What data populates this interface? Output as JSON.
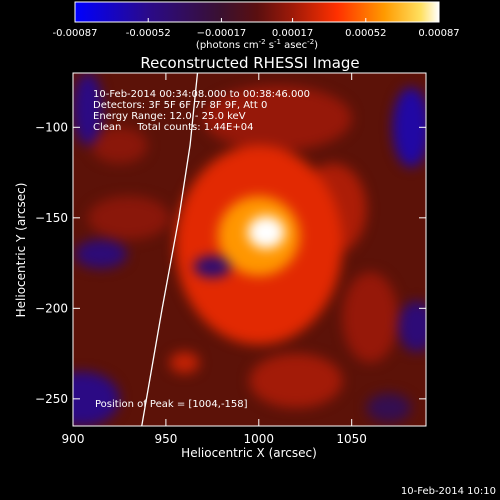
{
  "chart_data": {
    "type": "heatmap",
    "title": "Reconstructed RHESSI Image",
    "xlabel": "Heliocentric X (arcsec)",
    "ylabel": "Heliocentric Y (arcsec)",
    "xlim": [
      900,
      1090
    ],
    "ylim": [
      -265,
      -70
    ],
    "xticks": [
      900,
      950,
      1000,
      1050
    ],
    "yticks": [
      -100,
      -150,
      -200,
      -250
    ],
    "xtick_labels": [
      "900",
      "950",
      "1000",
      "1050"
    ],
    "ytick_labels": [
      "−100",
      "−150",
      "−200",
      "−250"
    ],
    "colorbar": {
      "range": [
        -0.00087,
        0.00087
      ],
      "tick_values": [
        -0.00087,
        -0.00052,
        -0.00017,
        0.00017,
        0.00052,
        0.00087
      ],
      "tick_labels": [
        "-0.00087",
        "-0.00052",
        "−0.00017",
        "0.00017",
        "0.00052",
        "0.00087"
      ],
      "unit_prefix": "(photons cm",
      "unit_sup1": "-2",
      "unit_mid1": " s",
      "unit_sup2": "-1",
      "unit_mid2": " asec",
      "unit_sup3": "-2",
      "unit_suffix": ")"
    },
    "info_lines": [
      "10-Feb-2014 00:34:08.000 to 00:38:46.000",
      "Detectors: 3F 5F 6F 7F 8F 9F, Att 0",
      "Energy Range: 12.0 - 25.0 keV",
      "Clean     Total counts: 1.44E+04"
    ],
    "peak_label": "Position of Peak = [1004,-158]",
    "peak": [
      1004,
      -158
    ],
    "limb_curve": [
      [
        967,
        -70
      ],
      [
        963,
        -110
      ],
      [
        957,
        -150
      ],
      [
        948,
        -200
      ],
      [
        937,
        -265
      ]
    ],
    "blobs": [
      {
        "x": 1004,
        "y": -158,
        "rx": 10,
        "ry": 9,
        "v": 0.00087
      },
      {
        "x": 1000,
        "y": -160,
        "rx": 22,
        "ry": 22,
        "v": 0.0006
      },
      {
        "x": 1000,
        "y": -165,
        "rx": 45,
        "ry": 55,
        "v": 0.00032
      },
      {
        "x": 995,
        "y": -195,
        "rx": 12,
        "ry": 14,
        "v": 0.0003
      },
      {
        "x": 960,
        "y": -230,
        "rx": 8,
        "ry": 6,
        "v": 0.00025
      },
      {
        "x": 1020,
        "y": -240,
        "rx": 25,
        "ry": 15,
        "v": 0.00018
      },
      {
        "x": 1040,
        "y": -145,
        "rx": 18,
        "ry": 25,
        "v": 0.0002
      },
      {
        "x": 1010,
        "y": -95,
        "rx": 40,
        "ry": 18,
        "v": 0.00015
      },
      {
        "x": 930,
        "y": -150,
        "rx": 22,
        "ry": 12,
        "v": 0.00012
      },
      {
        "x": 925,
        "y": -110,
        "rx": 15,
        "ry": 10,
        "v": 0.00012
      },
      {
        "x": 1060,
        "y": -205,
        "rx": 15,
        "ry": 25,
        "v": 0.00015
      },
      {
        "x": 908,
        "y": -90,
        "rx": 8,
        "ry": 20,
        "v": -0.0005
      },
      {
        "x": 915,
        "y": -170,
        "rx": 14,
        "ry": 8,
        "v": -0.00045
      },
      {
        "x": 975,
        "y": -177,
        "rx": 10,
        "ry": 6,
        "v": -0.00042
      },
      {
        "x": 1082,
        "y": -100,
        "rx": 10,
        "ry": 22,
        "v": -0.0006
      },
      {
        "x": 1085,
        "y": -210,
        "rx": 10,
        "ry": 14,
        "v": -0.00045
      },
      {
        "x": 905,
        "y": -250,
        "rx": 20,
        "ry": 15,
        "v": -0.0005
      },
      {
        "x": 1070,
        "y": -255,
        "rx": 12,
        "ry": 8,
        "v": -0.0003
      }
    ]
  },
  "footer": {
    "timestamp": "10-Feb-2014 10:10"
  }
}
